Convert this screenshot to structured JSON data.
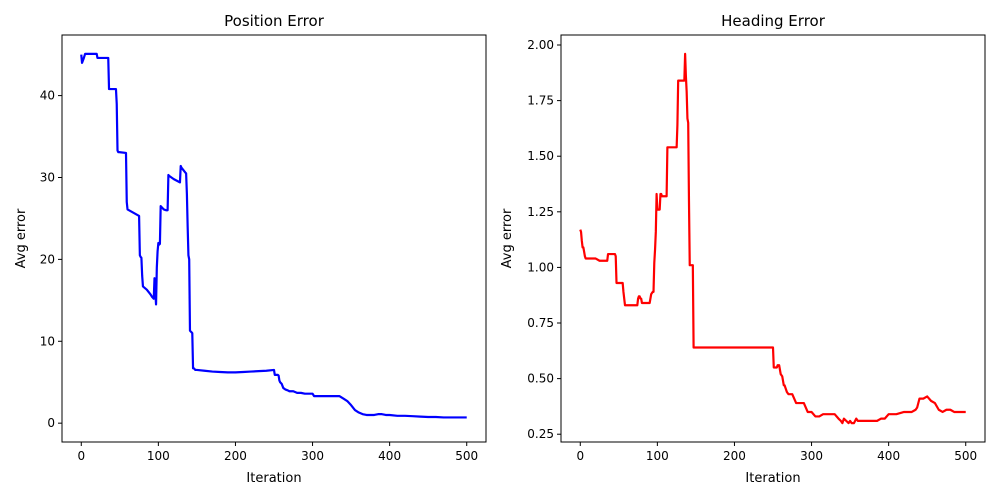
{
  "chart_data": [
    {
      "type": "line",
      "title": "Position Error",
      "xlabel": "Iteration",
      "ylabel": "Avg error",
      "xlim": [
        -25,
        525
      ],
      "ylim": [
        -2.3,
        47.4
      ],
      "xticks": [
        0,
        100,
        200,
        300,
        400,
        500
      ],
      "yticks": [
        0,
        10,
        20,
        30,
        40
      ],
      "grid": false,
      "color": "#0000ff",
      "x": [
        0,
        1,
        3,
        5,
        6,
        20,
        21,
        35,
        36,
        45,
        46,
        47,
        48,
        49,
        58,
        59,
        60,
        75,
        76,
        77,
        78,
        79,
        80,
        85,
        90,
        92,
        94,
        95,
        96,
        97,
        98,
        99,
        100,
        101,
        102,
        103,
        104,
        105,
        106,
        107,
        110,
        112,
        113,
        114,
        120,
        128,
        129,
        130,
        135,
        136,
        137,
        138,
        139,
        140,
        141,
        142,
        143,
        144,
        145,
        146,
        147,
        148,
        150,
        160,
        170,
        180,
        190,
        200,
        210,
        220,
        230,
        240,
        250,
        251,
        255,
        256,
        257,
        258,
        260,
        262,
        265,
        268,
        270,
        275,
        280,
        285,
        290,
        295,
        300,
        302,
        305,
        310,
        320,
        330,
        335,
        340,
        345,
        350,
        355,
        360,
        365,
        370,
        380,
        385,
        390,
        395,
        400,
        410,
        420,
        430,
        440,
        450,
        460,
        470,
        480,
        490,
        500
      ],
      "y": [
        45.0,
        44.0,
        44.5,
        45.1,
        45.1,
        45.1,
        44.6,
        44.6,
        40.8,
        40.8,
        39.0,
        33.3,
        33.1,
        33.1,
        33.0,
        27.0,
        26.1,
        25.3,
        20.5,
        20.3,
        20.2,
        18.0,
        16.7,
        16.3,
        15.7,
        15.4,
        15.2,
        17.7,
        16.0,
        14.5,
        19.0,
        21.0,
        22.0,
        21.8,
        21.9,
        26.5,
        26.4,
        26.3,
        26.2,
        26.1,
        26.0,
        26.0,
        30.3,
        30.2,
        29.8,
        29.4,
        31.4,
        31.2,
        30.6,
        30.5,
        28.0,
        24.0,
        20.5,
        20.0,
        11.3,
        11.2,
        11.1,
        11.0,
        6.7,
        6.7,
        6.6,
        6.5,
        6.5,
        6.4,
        6.3,
        6.25,
        6.2,
        6.2,
        6.25,
        6.3,
        6.35,
        6.4,
        6.5,
        5.9,
        5.9,
        5.8,
        5.2,
        5.0,
        4.8,
        4.3,
        4.1,
        4.0,
        3.9,
        3.9,
        3.7,
        3.7,
        3.6,
        3.6,
        3.6,
        3.3,
        3.3,
        3.3,
        3.3,
        3.3,
        3.3,
        3.0,
        2.7,
        2.2,
        1.6,
        1.3,
        1.1,
        1.0,
        1.0,
        1.1,
        1.1,
        1.0,
        1.0,
        0.9,
        0.9,
        0.85,
        0.8,
        0.75,
        0.75,
        0.7,
        0.7,
        0.7,
        0.7
      ]
    },
    {
      "type": "line",
      "title": "Heading Error",
      "xlabel": "Iteration",
      "ylabel": "Avg error",
      "xlim": [
        -25,
        525
      ],
      "ylim": [
        0.215,
        2.045
      ],
      "xticks": [
        0,
        100,
        200,
        300,
        400,
        500
      ],
      "yticks": [
        0.25,
        0.5,
        0.75,
        1.0,
        1.25,
        1.5,
        1.75,
        2.0
      ],
      "ytick_labels": [
        "0.25",
        "0.50",
        "0.75",
        "1.00",
        "1.25",
        "1.50",
        "1.75",
        "2.00"
      ],
      "grid": false,
      "color": "#ff0000",
      "x": [
        0,
        1,
        2,
        3,
        4,
        5,
        6,
        7,
        8,
        10,
        20,
        25,
        30,
        35,
        36,
        45,
        46,
        47,
        55,
        56,
        58,
        60,
        70,
        74,
        75,
        76,
        77,
        78,
        79,
        80,
        85,
        90,
        92,
        94,
        95,
        96,
        97,
        98,
        99,
        100,
        101,
        102,
        103,
        104,
        105,
        106,
        107,
        108,
        110,
        112,
        113,
        114,
        115,
        120,
        125,
        126,
        127,
        130,
        131,
        135,
        136,
        137,
        138,
        139,
        140,
        141,
        142,
        143,
        145,
        146,
        147,
        148,
        150,
        160,
        200,
        250,
        251,
        255,
        256,
        258,
        260,
        262,
        263,
        264,
        265,
        268,
        270,
        272,
        275,
        280,
        285,
        290,
        295,
        300,
        305,
        310,
        315,
        320,
        330,
        335,
        338,
        340,
        342,
        345,
        348,
        350,
        352,
        355,
        358,
        360,
        362,
        365,
        380,
        385,
        390,
        395,
        400,
        410,
        420,
        430,
        435,
        437,
        440,
        445,
        450,
        455,
        460,
        465,
        470,
        475,
        480,
        485,
        490,
        495,
        500
      ],
      "y": [
        1.17,
        1.16,
        1.12,
        1.09,
        1.09,
        1.07,
        1.05,
        1.04,
        1.04,
        1.04,
        1.04,
        1.03,
        1.03,
        1.03,
        1.06,
        1.06,
        1.05,
        0.93,
        0.93,
        0.89,
        0.83,
        0.83,
        0.83,
        0.83,
        0.86,
        0.87,
        0.87,
        0.86,
        0.86,
        0.84,
        0.84,
        0.84,
        0.88,
        0.89,
        0.89,
        1.02,
        1.08,
        1.16,
        1.33,
        1.26,
        1.26,
        1.26,
        1.26,
        1.33,
        1.33,
        1.32,
        1.32,
        1.32,
        1.32,
        1.32,
        1.54,
        1.54,
        1.54,
        1.54,
        1.54,
        1.64,
        1.84,
        1.84,
        1.84,
        1.84,
        1.96,
        1.86,
        1.79,
        1.67,
        1.65,
        1.3,
        1.01,
        1.01,
        1.01,
        1.01,
        0.64,
        0.64,
        0.64,
        0.64,
        0.64,
        0.64,
        0.55,
        0.55,
        0.56,
        0.56,
        0.52,
        0.51,
        0.49,
        0.47,
        0.47,
        0.44,
        0.43,
        0.43,
        0.43,
        0.39,
        0.39,
        0.39,
        0.35,
        0.35,
        0.33,
        0.33,
        0.34,
        0.34,
        0.34,
        0.32,
        0.31,
        0.3,
        0.32,
        0.31,
        0.3,
        0.31,
        0.3,
        0.3,
        0.32,
        0.31,
        0.31,
        0.31,
        0.31,
        0.31,
        0.32,
        0.32,
        0.34,
        0.34,
        0.35,
        0.35,
        0.36,
        0.37,
        0.41,
        0.41,
        0.42,
        0.4,
        0.39,
        0.36,
        0.35,
        0.36,
        0.36,
        0.35,
        0.35,
        0.35,
        0.35
      ]
    }
  ]
}
